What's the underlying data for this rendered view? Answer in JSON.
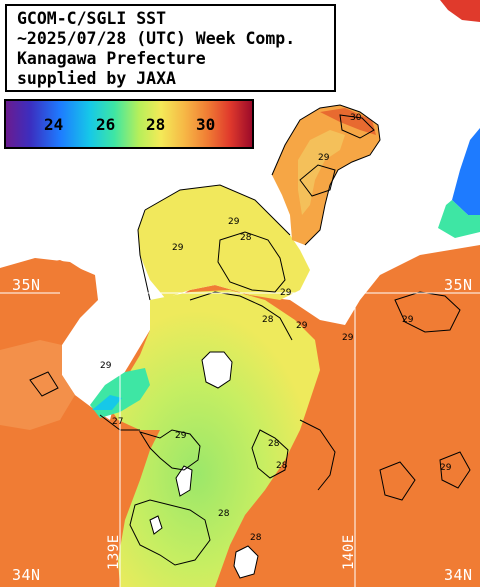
{
  "title": {
    "line1": "GCOM-C/SGLI SST",
    "line2": "~2025/07/28 (UTC) Week Comp.",
    "line3": "Kanagawa Prefecture",
    "line4": "supplied by JAXA"
  },
  "colorbar": {
    "ticks": [
      "24",
      "26",
      "28",
      "30"
    ],
    "unit_hint": "SST",
    "colors": [
      "#6a1b8f",
      "#1e7bff",
      "#16c8e8",
      "#3ee6a4",
      "#f4ea58",
      "#f07c34",
      "#e03a2c",
      "#9c0a2a"
    ]
  },
  "grid": {
    "lat_labels": [
      "35N",
      "35N",
      "34N",
      "34N"
    ],
    "lon_labels": [
      "139E",
      "140E"
    ]
  },
  "contour_labels": [
    "29",
    "29",
    "28",
    "28",
    "29",
    "29",
    "29",
    "29",
    "29",
    "27",
    "29",
    "28",
    "28",
    "28",
    "28",
    "29",
    "30",
    "29"
  ],
  "colors": {
    "land": "#ffffff",
    "sst_warm": "#f07c34",
    "sst_mid": "#f6b545",
    "sst_cool": "#b6ef5a",
    "sst_cold": "#3ee6a4",
    "sst_coldest": "#1e7bff",
    "grid_line": "#ffffff"
  }
}
